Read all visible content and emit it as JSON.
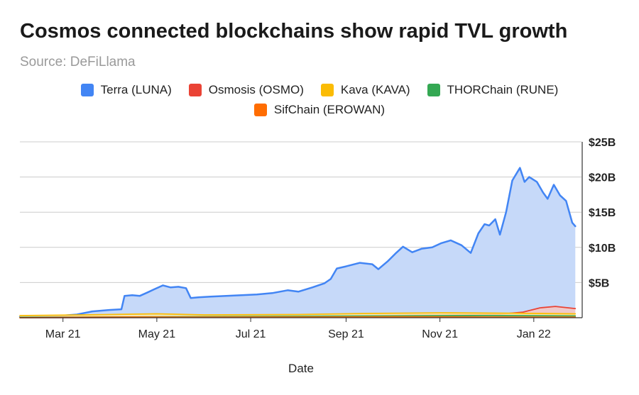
{
  "chart_data": {
    "type": "area",
    "title": "Cosmos connected blockchains show rapid TVL growth",
    "subtitle": "Source: DeFiLlama",
    "xlabel": "Date",
    "ylabel": "",
    "ylim": [
      0,
      25
    ],
    "y_unit": "Billion USD",
    "grid": true,
    "legend_position": "top",
    "x_ticks": [
      "Mar 21",
      "May 21",
      "Jul 21",
      "Sep 21",
      "Nov 21",
      "Jan 22"
    ],
    "x_tick_dates": [
      "2021-03-01",
      "2021-05-01",
      "2021-07-01",
      "2021-09-01",
      "2021-11-01",
      "2022-01-01"
    ],
    "y_ticks": [
      {
        "value": 5,
        "label": "$5B"
      },
      {
        "value": 10,
        "label": "$10B"
      },
      {
        "value": 15,
        "label": "$15B"
      },
      {
        "value": 20,
        "label": "$20B"
      },
      {
        "value": 25,
        "label": "$25B"
      }
    ],
    "x_range": [
      "2021-02-01",
      "2022-02-01"
    ],
    "series": [
      {
        "name": "Terra (LUNA)",
        "color": "#4285f4",
        "fill": "#c6d9f9",
        "points": [
          [
            "2021-02-01",
            0.1
          ],
          [
            "2021-02-15",
            0.2
          ],
          [
            "2021-03-01",
            0.3
          ],
          [
            "2021-03-10",
            0.45
          ],
          [
            "2021-03-20",
            0.9
          ],
          [
            "2021-03-31",
            1.1
          ],
          [
            "2021-04-08",
            1.2
          ],
          [
            "2021-04-10",
            3.1
          ],
          [
            "2021-04-15",
            3.2
          ],
          [
            "2021-04-20",
            3.1
          ],
          [
            "2021-04-25",
            3.6
          ],
          [
            "2021-04-29",
            4.0
          ],
          [
            "2021-05-05",
            4.6
          ],
          [
            "2021-05-10",
            4.3
          ],
          [
            "2021-05-15",
            4.4
          ],
          [
            "2021-05-20",
            4.2
          ],
          [
            "2021-05-23",
            2.8
          ],
          [
            "2021-05-28",
            2.9
          ],
          [
            "2021-06-05",
            3.0
          ],
          [
            "2021-06-15",
            3.1
          ],
          [
            "2021-06-25",
            3.2
          ],
          [
            "2021-07-05",
            3.3
          ],
          [
            "2021-07-15",
            3.5
          ],
          [
            "2021-07-25",
            3.9
          ],
          [
            "2021-08-01",
            3.7
          ],
          [
            "2021-08-10",
            4.3
          ],
          [
            "2021-08-18",
            4.9
          ],
          [
            "2021-08-22",
            5.5
          ],
          [
            "2021-08-26",
            7.0
          ],
          [
            "2021-09-01",
            7.3
          ],
          [
            "2021-09-10",
            7.8
          ],
          [
            "2021-09-18",
            7.6
          ],
          [
            "2021-09-22",
            6.9
          ],
          [
            "2021-09-28",
            8.0
          ],
          [
            "2021-10-03",
            9.1
          ],
          [
            "2021-10-08",
            10.1
          ],
          [
            "2021-10-14",
            9.3
          ],
          [
            "2021-10-20",
            9.8
          ],
          [
            "2021-10-27",
            10.0
          ],
          [
            "2021-11-02",
            10.6
          ],
          [
            "2021-11-08",
            11.0
          ],
          [
            "2021-11-15",
            10.3
          ],
          [
            "2021-11-21",
            9.2
          ],
          [
            "2021-11-26",
            12.0
          ],
          [
            "2021-11-30",
            13.3
          ],
          [
            "2021-12-03",
            13.1
          ],
          [
            "2021-12-07",
            14.0
          ],
          [
            "2021-12-10",
            11.8
          ],
          [
            "2021-12-14",
            15.0
          ],
          [
            "2021-12-18",
            19.5
          ],
          [
            "2021-12-23",
            21.3
          ],
          [
            "2021-12-26",
            19.3
          ],
          [
            "2021-12-29",
            20.0
          ],
          [
            "2022-01-03",
            19.3
          ],
          [
            "2022-01-07",
            17.8
          ],
          [
            "2022-01-10",
            16.9
          ],
          [
            "2022-01-14",
            18.9
          ],
          [
            "2022-01-18",
            17.4
          ],
          [
            "2022-01-22",
            16.6
          ],
          [
            "2022-01-26",
            13.5
          ],
          [
            "2022-01-28",
            13.0
          ]
        ]
      },
      {
        "name": "Osmosis (OSMO)",
        "color": "#ea4335",
        "fill": "#f6c6c2",
        "points": [
          [
            "2021-02-01",
            0
          ],
          [
            "2021-06-20",
            0.05
          ],
          [
            "2021-09-01",
            0.2
          ],
          [
            "2021-10-15",
            0.35
          ],
          [
            "2021-11-15",
            0.4
          ],
          [
            "2021-12-10",
            0.5
          ],
          [
            "2021-12-25",
            0.8
          ],
          [
            "2022-01-05",
            1.4
          ],
          [
            "2022-01-15",
            1.6
          ],
          [
            "2022-01-28",
            1.3
          ]
        ]
      },
      {
        "name": "Kava (KAVA)",
        "color": "#fbbc04",
        "fill": "#fde7a8",
        "points": [
          [
            "2021-02-01",
            0.3
          ],
          [
            "2021-03-15",
            0.4
          ],
          [
            "2021-05-01",
            0.55
          ],
          [
            "2021-06-01",
            0.4
          ],
          [
            "2021-08-01",
            0.45
          ],
          [
            "2021-09-15",
            0.6
          ],
          [
            "2021-11-01",
            0.7
          ],
          [
            "2021-12-15",
            0.65
          ],
          [
            "2022-01-28",
            0.55
          ]
        ]
      },
      {
        "name": "THORChain (RUNE)",
        "color": "#34a853",
        "fill": "#bfe2c8",
        "points": [
          [
            "2021-02-01",
            0.05
          ],
          [
            "2021-04-01",
            0.1
          ],
          [
            "2021-06-01",
            0.15
          ],
          [
            "2021-08-01",
            0.2
          ],
          [
            "2021-10-01",
            0.25
          ],
          [
            "2021-12-01",
            0.3
          ],
          [
            "2022-01-28",
            0.25
          ]
        ]
      },
      {
        "name": "SifChain (EROWAN)",
        "color": "#ff6d01",
        "fill": "#ffd2b0",
        "points": [
          [
            "2021-02-01",
            0
          ],
          [
            "2021-03-01",
            0.05
          ],
          [
            "2021-04-15",
            0.1
          ],
          [
            "2021-06-01",
            0.08
          ],
          [
            "2021-08-01",
            0.1
          ],
          [
            "2021-10-01",
            0.12
          ],
          [
            "2021-12-01",
            0.1
          ],
          [
            "2022-01-28",
            0.08
          ]
        ]
      }
    ]
  }
}
